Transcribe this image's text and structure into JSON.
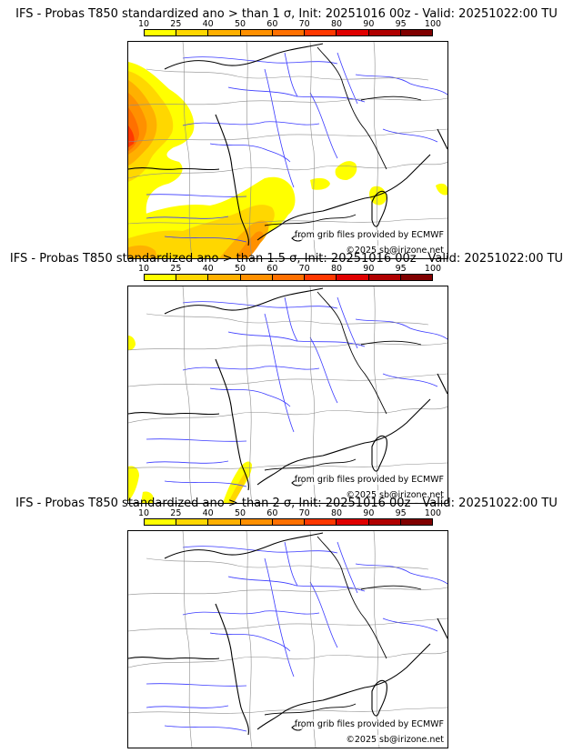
{
  "colorbar": {
    "ticks": [
      "10",
      "25",
      "40",
      "50",
      "60",
      "70",
      "80",
      "90",
      "95",
      "100"
    ],
    "colors": [
      "#ffff00",
      "#ffd700",
      "#ffb000",
      "#ff9000",
      "#ff7000",
      "#ff3800",
      "#e00000",
      "#b00000",
      "#800000"
    ]
  },
  "panels": [
    {
      "title": "IFS - Probas T850  standardized ano > than 1 σ, Init: 20251016 00z - Valid: 20251022:00 TU",
      "threshold_sigma": 1,
      "credit_source": "from grib files provided by ECMWF",
      "credit_copyright": "©2025 sb@irizone.net"
    },
    {
      "title": "IFS - Probas T850  standardized ano > than 1.5 σ, Init: 20251016 00z - Valid: 20251022:00 TU",
      "threshold_sigma": 1.5,
      "credit_source": "from grib files provided by ECMWF",
      "credit_copyright": "©2025 sb@irizone.net"
    },
    {
      "title": "IFS - Probas T850  standardized ano > than 2 σ, Init: 20251016 00z - Valid: 20251022:00 TU",
      "threshold_sigma": 2,
      "credit_source": "from grib files provided by ECMWF",
      "credit_copyright": "©2025 sb@irizone.net"
    }
  ]
}
